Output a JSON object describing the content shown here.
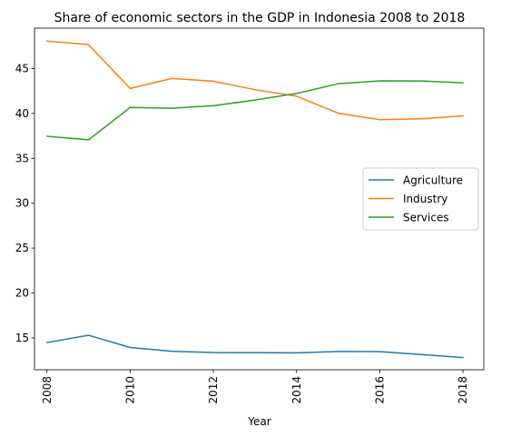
{
  "chart_data": {
    "type": "line",
    "title": "Share of economic sectors in the GDP in Indonesia 2008 to 2018",
    "xlabel": "Year",
    "ylabel": "",
    "x": [
      2008,
      2009,
      2010,
      2011,
      2012,
      2013,
      2014,
      2015,
      2016,
      2017,
      2018
    ],
    "xticks": [
      2008,
      2010,
      2012,
      2014,
      2016,
      2018
    ],
    "yticks": [
      15,
      20,
      25,
      30,
      35,
      40,
      45
    ],
    "xlim": [
      2007.7,
      2018.5
    ],
    "ylim": [
      11.45,
      49.5
    ],
    "grid": false,
    "legend_position": "center-right",
    "series": [
      {
        "name": "Agriculture",
        "color": "#1f77b4",
        "values": [
          14.48,
          15.29,
          13.93,
          13.51,
          13.37,
          13.36,
          13.34,
          13.49,
          13.47,
          13.14,
          12.81
        ]
      },
      {
        "name": "Industry",
        "color": "#ff7f0e",
        "values": [
          48.06,
          47.66,
          42.78,
          43.9,
          43.59,
          42.65,
          41.92,
          40.03,
          39.3,
          39.4,
          39.73
        ]
      },
      {
        "name": "Services",
        "color": "#2ca02c",
        "values": [
          37.46,
          37.06,
          40.67,
          40.58,
          40.86,
          41.49,
          42.23,
          43.31,
          43.63,
          43.62,
          43.41
        ]
      }
    ]
  }
}
